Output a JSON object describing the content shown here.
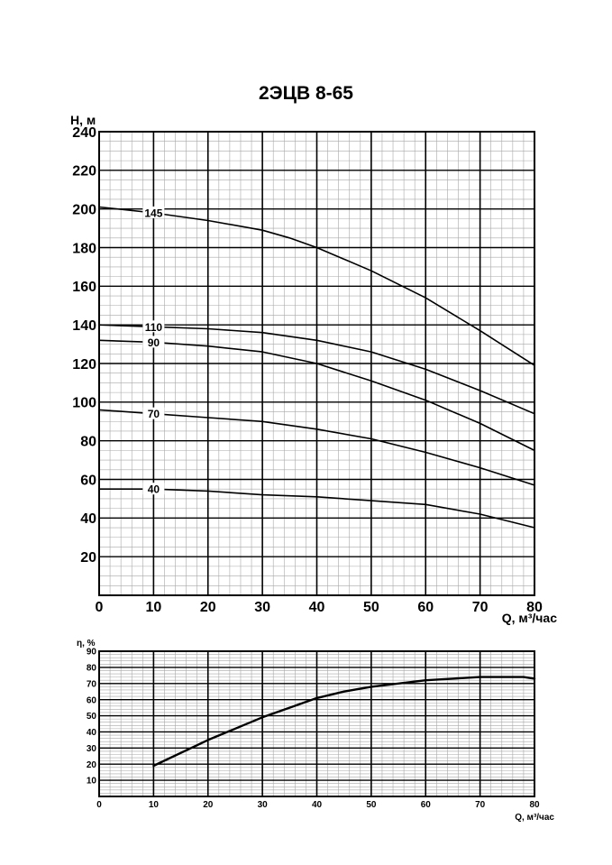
{
  "title": "2ЭЦВ 8-65",
  "chart_data": [
    {
      "type": "line",
      "title": "2ЭЦВ 8-65",
      "xlabel": "Q, м³/час",
      "ylabel": "H, м",
      "xlim": [
        0,
        80
      ],
      "ylim": [
        0,
        240
      ],
      "xticks": [
        "0",
        "10",
        "20",
        "30",
        "40",
        "50",
        "60",
        "70",
        "80"
      ],
      "yticks": [
        "20",
        "40",
        "60",
        "80",
        "100",
        "120",
        "140",
        "160",
        "180",
        "200",
        "220",
        "240"
      ],
      "grid": true,
      "series": [
        {
          "name": "145",
          "x": [
            0,
            10,
            20,
            30,
            35,
            40,
            50,
            60,
            70,
            80
          ],
          "y": [
            201,
            198,
            194,
            189,
            185,
            180,
            168,
            154,
            137,
            119
          ]
        },
        {
          "name": "110",
          "x": [
            0,
            10,
            20,
            30,
            40,
            50,
            60,
            70,
            80
          ],
          "y": [
            140,
            139,
            138,
            136,
            132,
            126,
            117,
            106,
            94
          ]
        },
        {
          "name": "90",
          "x": [
            0,
            10,
            20,
            30,
            40,
            50,
            60,
            70,
            80
          ],
          "y": [
            132,
            131,
            129,
            126,
            120,
            111,
            101,
            89,
            75
          ]
        },
        {
          "name": "70",
          "x": [
            0,
            10,
            20,
            30,
            40,
            50,
            60,
            70,
            80
          ],
          "y": [
            96,
            94,
            92,
            90,
            86,
            81,
            74,
            66,
            57
          ]
        },
        {
          "name": "40",
          "x": [
            0,
            10,
            20,
            30,
            40,
            50,
            60,
            70,
            80
          ],
          "y": [
            55,
            55,
            54,
            52,
            51,
            49,
            47,
            42,
            35
          ]
        }
      ]
    },
    {
      "type": "line",
      "title": "",
      "xlabel": "Q, м³/час",
      "ylabel": "η, %",
      "xlim": [
        0,
        80
      ],
      "ylim": [
        0,
        90
      ],
      "xticks": [
        "0",
        "10",
        "20",
        "30",
        "40",
        "50",
        "60",
        "70",
        "80"
      ],
      "yticks": [
        "10",
        "20",
        "30",
        "40",
        "50",
        "60",
        "70",
        "80",
        "90"
      ],
      "grid": true,
      "series": [
        {
          "name": "",
          "x": [
            10,
            20,
            30,
            35,
            40,
            45,
            50,
            60,
            65,
            70,
            75,
            78,
            80
          ],
          "y": [
            19,
            35,
            49,
            55,
            61,
            65,
            68,
            72,
            73,
            74,
            74,
            74,
            73
          ]
        }
      ]
    }
  ]
}
